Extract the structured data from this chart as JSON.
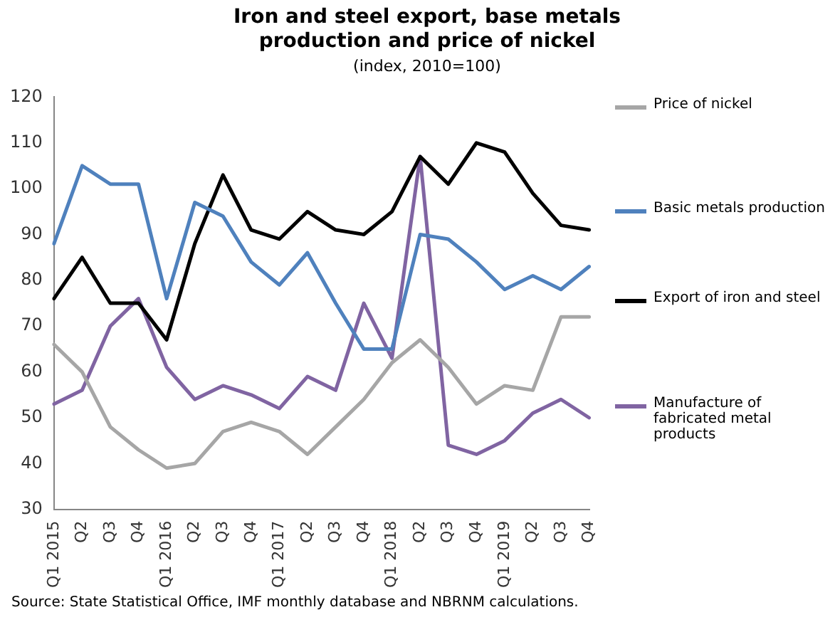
{
  "chart_data": {
    "type": "line",
    "title": "Iron and steel export, base metals production and price of nickel",
    "subtitle": "(index, 2010=100)",
    "categories": [
      "Q1 2015",
      "Q2",
      "Q3",
      "Q4",
      "Q1 2016",
      "Q2",
      "Q3",
      "Q4",
      "Q1 2017",
      "Q2",
      "Q3",
      "Q4",
      "Q1 2018",
      "Q2",
      "Q3",
      "Q4",
      "Q1 2019",
      "Q2",
      "Q3",
      "Q4"
    ],
    "series": [
      {
        "name": "Price of nickel",
        "color": "#a6a6a6",
        "values": [
          66,
          60,
          48,
          43,
          39,
          40,
          47,
          49,
          47,
          42,
          48,
          54,
          62,
          67,
          61,
          53,
          57,
          56,
          72,
          72
        ]
      },
      {
        "name": "Basic metals production",
        "color": "#4f81bd",
        "values": [
          88,
          105,
          101,
          101,
          76,
          97,
          94,
          84,
          79,
          86,
          75,
          65,
          65,
          90,
          89,
          84,
          78,
          81,
          78,
          83
        ]
      },
      {
        "name": "Export of iron and steel",
        "color": "#000000",
        "values": [
          76,
          85,
          75,
          75,
          67,
          88,
          103,
          91,
          89,
          95,
          91,
          90,
          95,
          107,
          101,
          110,
          108,
          99,
          92,
          91
        ]
      },
      {
        "name": "Manufacture of fabricated metal products",
        "color": "#8064a2",
        "values": [
          53,
          56,
          70,
          76,
          61,
          54,
          57,
          55,
          52,
          59,
          56,
          75,
          63,
          107,
          44,
          42,
          45,
          51,
          54,
          50
        ]
      }
    ],
    "ylim": [
      30,
      120
    ],
    "yticks": [
      30,
      40,
      50,
      60,
      70,
      80,
      90,
      100,
      110,
      120
    ],
    "grid": false,
    "legend": "right",
    "marker": "none",
    "line_style": "solid",
    "annotations": [
      "Source: State Statistical Office, IMF monthly database and NBRNM calculations."
    ]
  }
}
